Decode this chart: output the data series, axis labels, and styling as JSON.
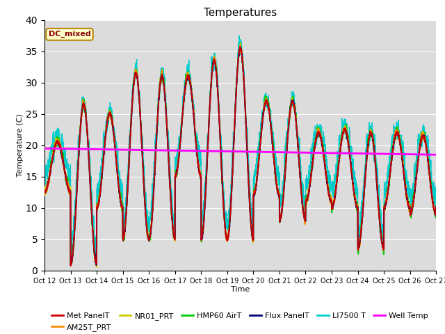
{
  "title": "Temperatures",
  "xlabel": "Time",
  "ylabel": "Temperature (C)",
  "ylim": [
    0,
    40
  ],
  "xlim": [
    0,
    15
  ],
  "xtick_labels": [
    "Oct 12",
    "Oct 13",
    "Oct 14",
    "Oct 15",
    "Oct 16",
    "Oct 17",
    "Oct 18",
    "Oct 19",
    "Oct 20",
    "Oct 21",
    "Oct 22",
    "Oct 23",
    "Oct 24",
    "Oct 25",
    "Oct 26",
    "Oct 27"
  ],
  "ytick_values": [
    0,
    5,
    10,
    15,
    20,
    25,
    30,
    35,
    40
  ],
  "annotation_text": "DC_mixed",
  "annotation_color": "#8B0000",
  "annotation_bg": "#FFFFCC",
  "annotation_border": "#B8860B",
  "well_temp_value": 19.3,
  "well_temp_color": "#FF00FF",
  "background_color": "#DCDCDC",
  "series_colors": {
    "Met PanelT": "#CC0000",
    "AM25T_PRT": "#FF8C00",
    "NR01_PRT": "#CCCC00",
    "HMP60 AirT": "#00CC00",
    "Flux PanelT": "#000080",
    "LI7500 T": "#00CCCC"
  },
  "day_params": [
    [
      12.5,
      20.5
    ],
    [
      1.0,
      26.5
    ],
    [
      10.0,
      25.0
    ],
    [
      5.0,
      31.5
    ],
    [
      5.0,
      31.0
    ],
    [
      15.0,
      31.0
    ],
    [
      5.0,
      33.5
    ],
    [
      5.0,
      35.5
    ],
    [
      12.0,
      27.0
    ],
    [
      8.0,
      27.0
    ],
    [
      11.0,
      22.0
    ],
    [
      10.0,
      22.5
    ],
    [
      3.5,
      22.0
    ],
    [
      10.0,
      22.0
    ],
    [
      9.0,
      21.5
    ],
    [
      10.0,
      21.0
    ]
  ]
}
